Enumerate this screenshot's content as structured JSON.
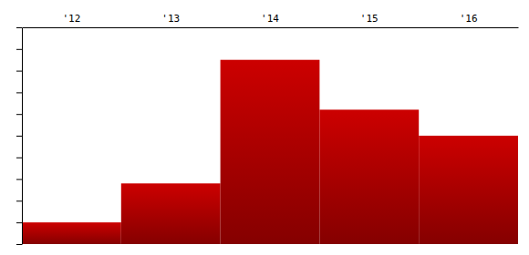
{
  "chart_data": {
    "type": "bar",
    "categories": [
      "'12",
      "'13",
      "'14",
      "'15",
      "'16"
    ],
    "values": [
      1000,
      2800,
      8500,
      6200,
      5000
    ],
    "color": "#cc0000",
    "ylim": [
      0,
      10000
    ],
    "yticks": [
      0,
      1000,
      2000,
      3000,
      4000,
      5000,
      6000,
      7000,
      8000,
      9000,
      10000
    ],
    "grid": false,
    "tick_labels": "x"
  }
}
